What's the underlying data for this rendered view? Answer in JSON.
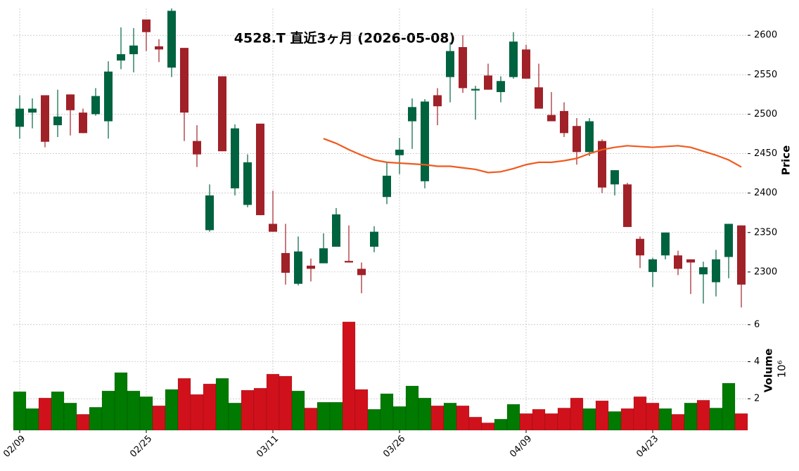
{
  "chart_data": {
    "type": "candlestick",
    "title": "4528.T  直近3ヶ月 (2026-05-08)",
    "categories": [
      "02/09",
      null,
      null,
      null,
      null,
      null,
      null,
      null,
      null,
      null,
      "02/25",
      null,
      null,
      null,
      null,
      null,
      null,
      null,
      null,
      null,
      "03/11",
      null,
      null,
      null,
      null,
      null,
      null,
      null,
      null,
      null,
      "03/26",
      null,
      null,
      null,
      null,
      null,
      null,
      null,
      null,
      null,
      "04/09",
      null,
      null,
      null,
      null,
      null,
      null,
      null,
      null,
      null,
      "04/23",
      null,
      null,
      null,
      null,
      null,
      null,
      null
    ],
    "open": [
      2484,
      2502,
      2524,
      2486,
      2525,
      2502,
      2500,
      2491,
      2568,
      2576,
      2620,
      2586,
      2559,
      2584,
      2466,
      2353,
      2548,
      2406,
      2385,
      2488,
      2361,
      2324,
      2285,
      2308,
      2311,
      2332,
      2314,
      2304,
      2332,
      2395,
      2448,
      2491,
      2415,
      2524,
      2547,
      2585,
      2530,
      2549,
      2528,
      2547,
      2582,
      2534,
      2499,
      2504,
      2485,
      2452,
      2466,
      2411,
      2411,
      2342,
      2300,
      2321,
      2321,
      2316,
      2297,
      2287,
      2319,
      2359
    ],
    "high": [
      2524,
      2520,
      2524,
      2531,
      2525,
      2507,
      2533,
      2567,
      2610,
      2609,
      2620,
      2595,
      2634,
      2584,
      2486,
      2411,
      2548,
      2487,
      2449,
      2488,
      2403,
      2361,
      2345,
      2317,
      2349,
      2381,
      2359,
      2312,
      2358,
      2440,
      2470,
      2520,
      2519,
      2533,
      2591,
      2600,
      2536,
      2564,
      2548,
      2604,
      2588,
      2564,
      2528,
      2515,
      2495,
      2495,
      2468,
      2429,
      2413,
      2345,
      2318,
      2350,
      2327,
      2316,
      2313,
      2328,
      2361,
      2359
    ],
    "low": [
      2469,
      2482,
      2458,
      2471,
      2473,
      2476,
      2498,
      2469,
      2557,
      2553,
      2580,
      2566,
      2547,
      2466,
      2433,
      2351,
      2453,
      2397,
      2382,
      2372,
      2351,
      2284,
      2283,
      2288,
      2311,
      2332,
      2312,
      2273,
      2325,
      2386,
      2424,
      2456,
      2406,
      2486,
      2515,
      2527,
      2493,
      2531,
      2515,
      2545,
      2545,
      2507,
      2491,
      2471,
      2436,
      2447,
      2400,
      2397,
      2357,
      2305,
      2281,
      2316,
      2296,
      2272,
      2260,
      2269,
      2292,
      2255
    ],
    "close": [
      2507,
      2507,
      2465,
      2497,
      2505,
      2476,
      2523,
      2554,
      2576,
      2587,
      2604,
      2582,
      2631,
      2502,
      2449,
      2397,
      2453,
      2482,
      2439,
      2372,
      2351,
      2299,
      2326,
      2304,
      2330,
      2373,
      2312,
      2296,
      2351,
      2422,
      2455,
      2509,
      2516,
      2510,
      2580,
      2533,
      2532,
      2531,
      2542,
      2592,
      2545,
      2507,
      2491,
      2476,
      2452,
      2491,
      2407,
      2429,
      2357,
      2321,
      2316,
      2350,
      2304,
      2312,
      2306,
      2316,
      2361,
      2284
    ],
    "up_color": "#006340",
    "down_color": "#a02128",
    "ylim": [
      2250,
      2634
    ],
    "yticks": [
      2300,
      2350,
      2400,
      2450,
      2500,
      2550,
      2600
    ],
    "y_label": "Price",
    "grid": true,
    "ma": {
      "color": "#f05a1e",
      "values": [
        null,
        null,
        null,
        null,
        null,
        null,
        null,
        null,
        null,
        null,
        null,
        null,
        null,
        null,
        null,
        null,
        null,
        null,
        null,
        null,
        null,
        null,
        null,
        null,
        2469,
        2463,
        2455,
        2448,
        2442,
        2439,
        2438,
        2437,
        2436,
        2434,
        2434,
        2432,
        2430,
        2426,
        2427,
        2431,
        2436,
        2439,
        2439,
        2441,
        2444,
        2450,
        2455,
        2458,
        2460,
        2459,
        2458,
        2459,
        2460,
        2458,
        2453,
        2448,
        2442,
        2433
      ]
    },
    "volume": {
      "values": [
        2.38,
        1.47,
        2.04,
        2.38,
        1.77,
        1.16,
        1.54,
        2.42,
        3.41,
        2.42,
        2.11,
        1.62,
        2.5,
        3.1,
        2.23,
        2.8,
        3.1,
        1.77,
        2.46,
        2.57,
        3.33,
        3.22,
        2.42,
        1.5,
        1.81,
        1.81,
        6.15,
        2.5,
        1.43,
        2.27,
        1.58,
        2.69,
        2.04,
        1.62,
        1.77,
        1.62,
        1.01,
        0.7,
        0.9,
        1.7,
        1.2,
        1.43,
        1.2,
        1.5,
        2.04,
        1.47,
        1.89,
        1.31,
        1.47,
        2.11,
        1.77,
        1.47,
        1.16,
        1.77,
        1.92,
        1.5,
        2.84,
        1.2
      ],
      "up_color": "#007a00",
      "down_color": "#d0111b",
      "ylim": [
        0.3,
        6.6
      ],
      "yticks": [
        2,
        4,
        6
      ],
      "y_label": "Volume",
      "offset_label": "10⁶"
    }
  }
}
